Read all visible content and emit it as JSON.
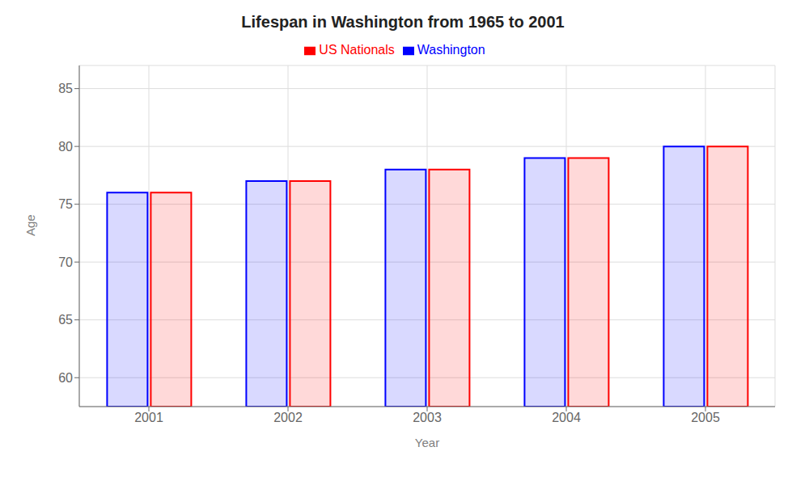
{
  "chart_data": {
    "type": "bar",
    "title": "Lifespan in Washington from 1965 to 2001",
    "xlabel": "Year",
    "ylabel": "Age",
    "categories": [
      "2001",
      "2002",
      "2003",
      "2004",
      "2005"
    ],
    "series": [
      {
        "name": "Washington",
        "color": "#0000ff",
        "values": [
          76,
          77,
          78,
          79,
          80
        ]
      },
      {
        "name": "US Nationals",
        "color": "#ff0000",
        "values": [
          76,
          77,
          78,
          79,
          80
        ]
      }
    ],
    "ylim": [
      57.5,
      87
    ],
    "yticks": [
      60,
      65,
      70,
      75,
      80,
      85
    ],
    "grid": true,
    "legend": "top"
  }
}
